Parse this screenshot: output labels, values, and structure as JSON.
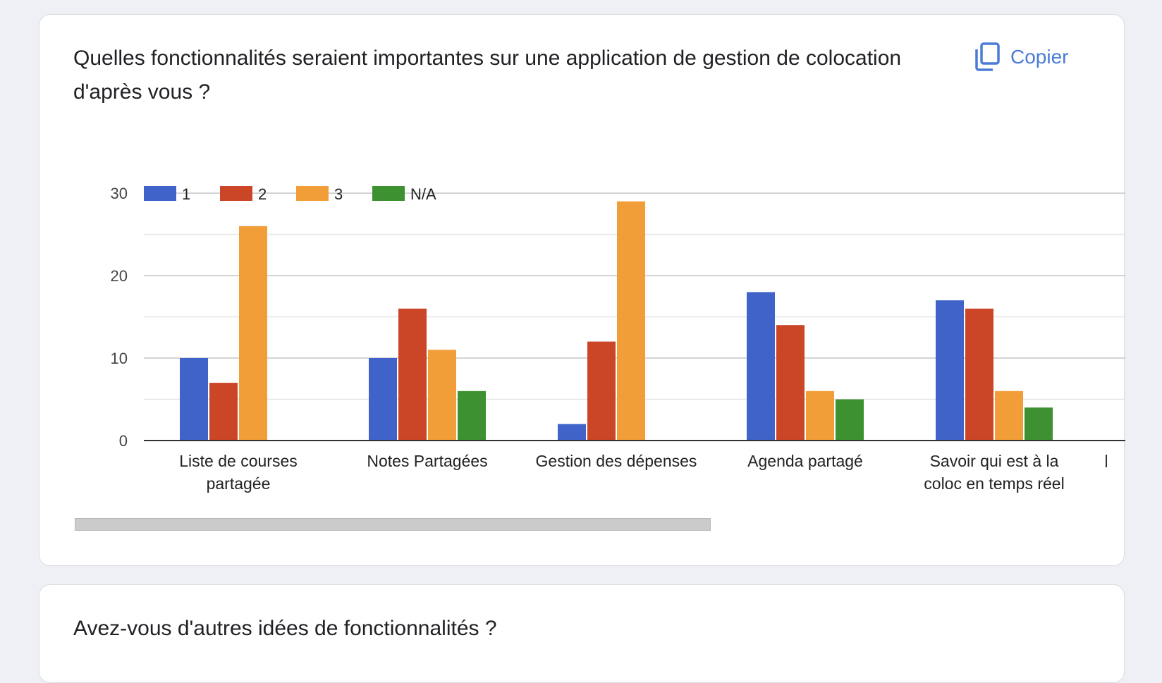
{
  "card1": {
    "question": "Quelles fonctionnalités seraient importantes sur une application de gestion de colocation d'après vous ?",
    "copy_label": "Copier"
  },
  "card2": {
    "question": "Avez-vous d'autres idées de fonctionnalités ?"
  },
  "icons": {
    "copy": "copy-icon"
  },
  "chart_data": {
    "type": "bar",
    "categories": [
      [
        "Liste de courses",
        "partagée"
      ],
      [
        "Notes Partagées"
      ],
      [
        "Gestion des dépenses"
      ],
      [
        "Agenda partagé"
      ],
      [
        "Savoir qui est à la",
        "coloc en temps réel"
      ]
    ],
    "series": [
      {
        "name": "1",
        "color": "#3f63c9",
        "values": [
          10,
          10,
          2,
          18,
          17
        ]
      },
      {
        "name": "2",
        "color": "#cb4527",
        "values": [
          7,
          16,
          12,
          14,
          16
        ]
      },
      {
        "name": "3",
        "color": "#f29e38",
        "values": [
          26,
          11,
          29,
          6,
          6
        ]
      },
      {
        "name": "N/A",
        "color": "#3d9130",
        "values": [
          0,
          6,
          0,
          5,
          4
        ]
      }
    ],
    "yticks": [
      0,
      10,
      20,
      30
    ],
    "ylim": [
      0,
      30
    ],
    "grid": true,
    "legend": "top-left"
  }
}
